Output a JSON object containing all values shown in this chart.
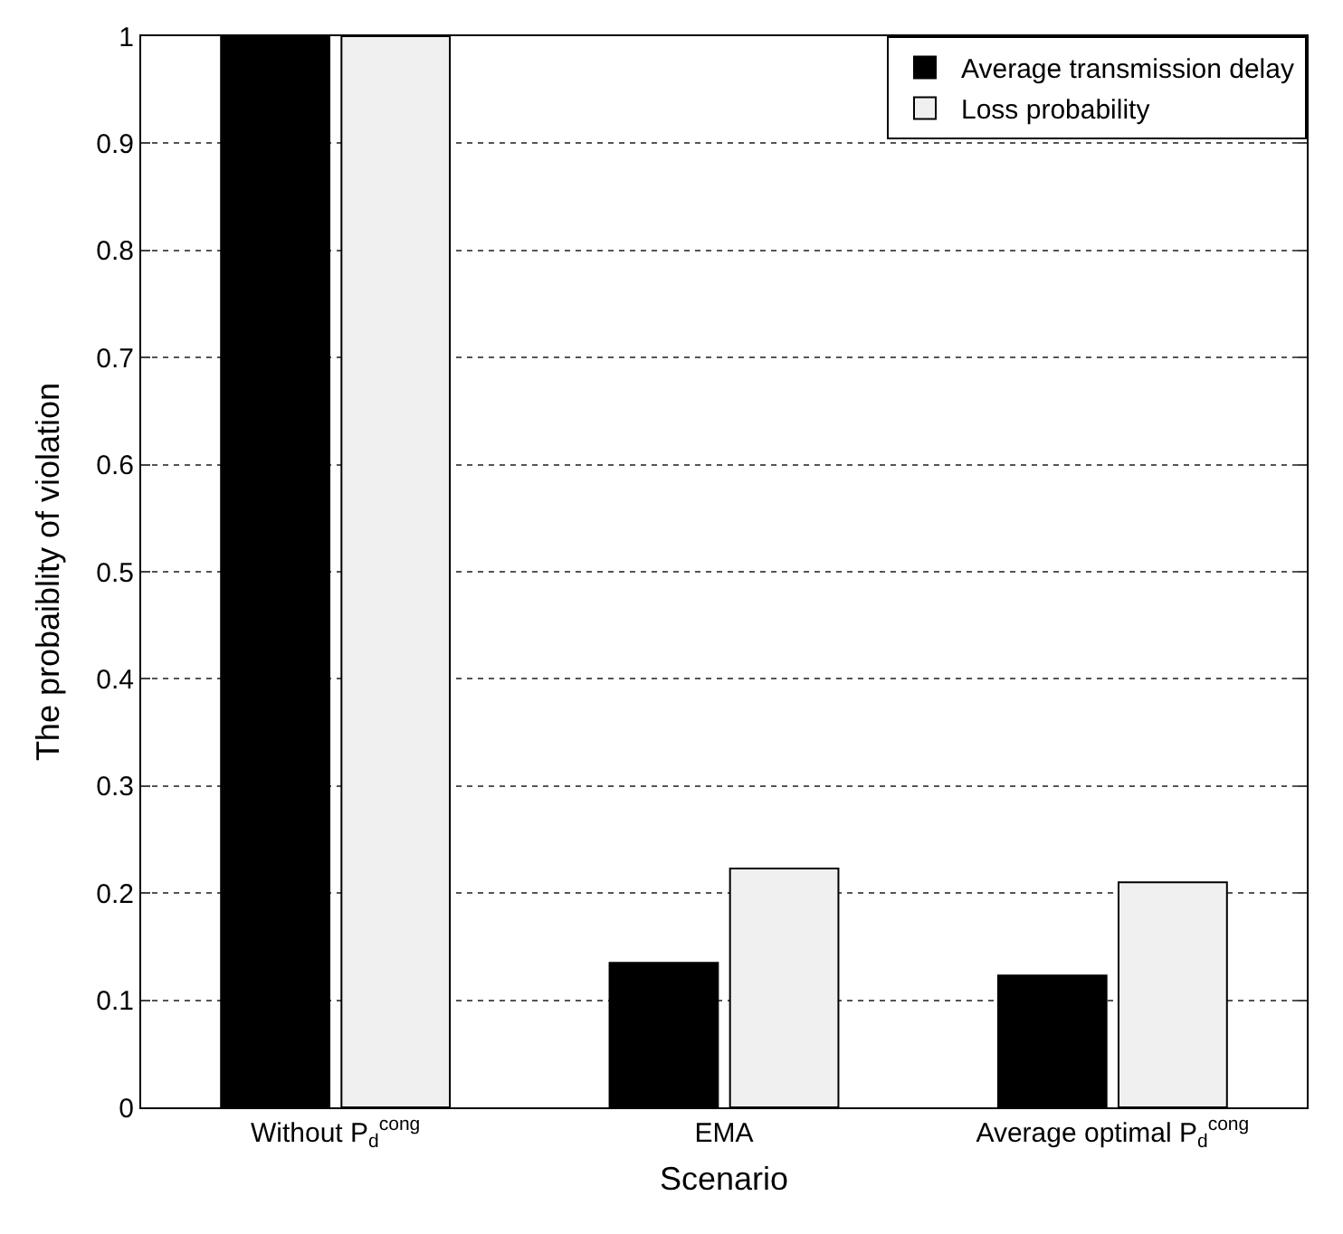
{
  "chart_data": {
    "type": "bar",
    "xlabel": "Scenario",
    "ylabel": "The probaiblity of violation",
    "categories": [
      "Without P$_{d}$$^{cong}$",
      "EMA",
      "Average optimal P$_{d}$$^{cong}$"
    ],
    "series": [
      {
        "name": "Average transmission delay",
        "color": "#000000",
        "values": [
          1,
          0.135,
          0.123
        ]
      },
      {
        "name": "Loss probability",
        "color": "#f0f0f0",
        "values": [
          1,
          0.223,
          0.21
        ]
      }
    ],
    "ylim": [
      0,
      1
    ],
    "yticks": [
      0,
      0.1,
      0.2,
      0.3,
      0.4,
      0.5,
      0.6,
      0.7,
      0.8,
      0.9,
      1
    ],
    "grid": "y",
    "legend": "top right"
  }
}
